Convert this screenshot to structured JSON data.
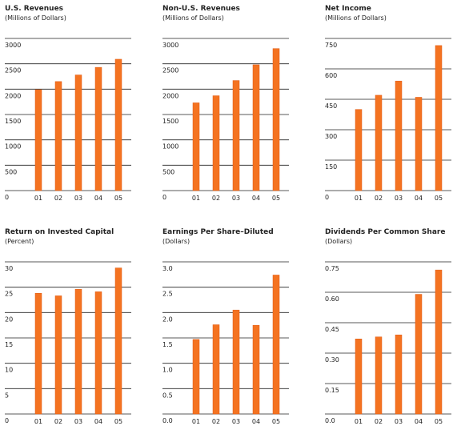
{
  "colors": {
    "bar": "#F47321",
    "bar_edge": "#E05A14",
    "grid": "#222222"
  },
  "chart_data": [
    {
      "type": "bar",
      "title": "U.S. Revenues",
      "ylabel": "(Millions of Dollars)",
      "categories": [
        "01",
        "02",
        "03",
        "04",
        "05"
      ],
      "values": [
        1990,
        2150,
        2280,
        2430,
        2590
      ],
      "ylim": [
        0,
        3000
      ],
      "yticks": [
        "0",
        "500",
        "1000",
        "1500",
        "2000",
        "2500",
        "3000"
      ],
      "grid": true
    },
    {
      "type": "bar",
      "title": "Non-U.S. Revenues",
      "ylabel": "(Millions of Dollars)",
      "categories": [
        "01",
        "02",
        "03",
        "04",
        "05"
      ],
      "values": [
        1730,
        1870,
        2170,
        2480,
        2800
      ],
      "ylim": [
        0,
        3000
      ],
      "yticks": [
        "0",
        "500",
        "1000",
        "1500",
        "2000",
        "2500",
        "3000"
      ],
      "grid": true
    },
    {
      "type": "bar",
      "title": "Net Income",
      "ylabel": "(Millions of Dollars)",
      "categories": [
        "01",
        "02",
        "03",
        "04",
        "05"
      ],
      "values": [
        400,
        470,
        540,
        460,
        715
      ],
      "ylim": [
        0,
        750
      ],
      "yticks": [
        "0",
        "150",
        "300",
        "450",
        "600",
        "750"
      ],
      "grid": true
    },
    {
      "type": "bar",
      "title": "Return on Invested Capital",
      "ylabel": "(Percent)",
      "categories": [
        "01",
        "02",
        "03",
        "04",
        "05"
      ],
      "values": [
        23.8,
        23.3,
        24.6,
        24.1,
        28.8
      ],
      "ylim": [
        0,
        30
      ],
      "yticks": [
        "0",
        "5",
        "10",
        "15",
        "20",
        "25",
        "30"
      ],
      "grid": true
    },
    {
      "type": "bar",
      "title": "Earnings Per Share–Diluted",
      "ylabel": "(Dollars)",
      "categories": [
        "01",
        "02",
        "03",
        "04",
        "05"
      ],
      "values": [
        1.47,
        1.76,
        2.05,
        1.75,
        2.74
      ],
      "ylim": [
        0,
        3.0
      ],
      "yticks": [
        "0.0",
        "0.5",
        "1.0",
        "1.5",
        "2.0",
        "2.5",
        "3.0"
      ],
      "grid": true
    },
    {
      "type": "bar",
      "title": "Dividends Per Common Share",
      "ylabel": "(Dollars)",
      "categories": [
        "01",
        "02",
        "03",
        "04",
        "05"
      ],
      "values": [
        0.37,
        0.38,
        0.39,
        0.59,
        0.71
      ],
      "ylim": [
        0,
        0.75
      ],
      "yticks": [
        "0.0",
        "0.15",
        "0.30",
        "0.45",
        "0.60",
        "0.75"
      ],
      "grid": true
    }
  ]
}
